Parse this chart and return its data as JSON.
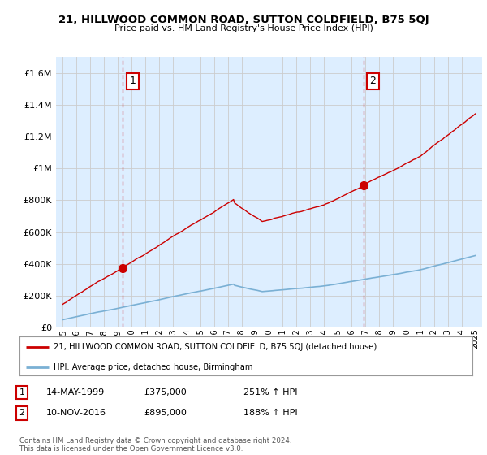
{
  "title": "21, HILLWOOD COMMON ROAD, SUTTON COLDFIELD, B75 5QJ",
  "subtitle": "Price paid vs. HM Land Registry's House Price Index (HPI)",
  "sale1_date": "14-MAY-1999",
  "sale1_price": 375000,
  "sale1_hpi_pct": "251% ↑ HPI",
  "sale1_year": 1999.37,
  "sale2_date": "10-NOV-2016",
  "sale2_price": 895000,
  "sale2_hpi_pct": "188% ↑ HPI",
  "sale2_year": 2016.86,
  "legend_line1": "21, HILLWOOD COMMON ROAD, SUTTON COLDFIELD, B75 5QJ (detached house)",
  "legend_line2": "HPI: Average price, detached house, Birmingham",
  "footer": "Contains HM Land Registry data © Crown copyright and database right 2024.\nThis data is licensed under the Open Government Licence v3.0.",
  "red_color": "#cc0000",
  "blue_color": "#7ab0d4",
  "bg_fill_color": "#ddeeff",
  "dashed_color": "#cc0000",
  "ylim_max": 1700000,
  "background_color": "#ffffff",
  "grid_color": "#cccccc"
}
